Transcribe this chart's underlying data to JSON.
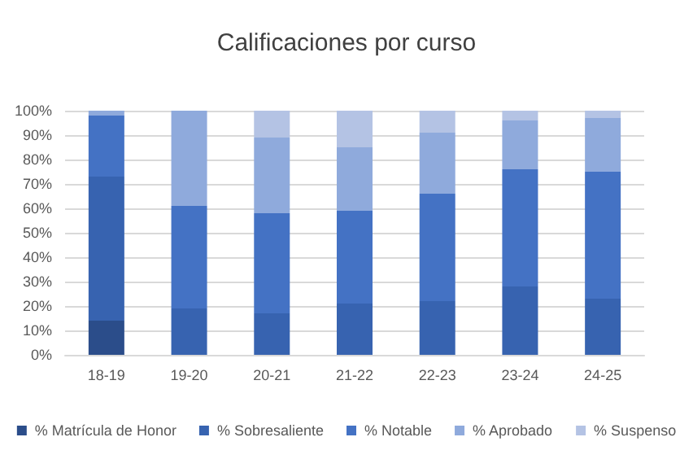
{
  "chart_data": {
    "type": "bar",
    "title": "Calificaciones por curso",
    "stacked": true,
    "categories": [
      "18-19",
      "19-20",
      "20-21",
      "21-22",
      "22-23",
      "23-24",
      "24-25"
    ],
    "series": [
      {
        "name": "% Matrícula de Honor",
        "color": "#2b4d8a",
        "values": [
          14,
          0,
          0,
          0,
          0,
          0,
          0
        ]
      },
      {
        "name": "% Sobresaliente",
        "color": "#3763b0",
        "values": [
          59,
          19,
          17,
          21,
          22,
          28,
          23
        ]
      },
      {
        "name": "% Notable",
        "color": "#4472c4",
        "values": [
          25,
          42,
          41,
          38,
          44,
          48,
          52
        ]
      },
      {
        "name": "% Aprobado",
        "color": "#8faadc",
        "values": [
          2,
          39,
          31,
          26,
          25,
          20,
          22
        ]
      },
      {
        "name": "% Suspenso",
        "color": "#b4c3e4",
        "values": [
          0,
          0,
          11,
          15,
          9,
          4,
          3
        ]
      }
    ],
    "ylim": [
      0,
      100
    ],
    "yticks": [
      {
        "value": 0,
        "label": "0%"
      },
      {
        "value": 10,
        "label": "10%"
      },
      {
        "value": 20,
        "label": "20%"
      },
      {
        "value": 30,
        "label": "30%"
      },
      {
        "value": 40,
        "label": "40%"
      },
      {
        "value": 50,
        "label": "50%"
      },
      {
        "value": 60,
        "label": "60%"
      },
      {
        "value": 70,
        "label": "70%"
      },
      {
        "value": 80,
        "label": "80%"
      },
      {
        "value": 90,
        "label": "90%"
      },
      {
        "value": 100,
        "label": "100%"
      }
    ],
    "grid": "y",
    "legend": "bottom"
  }
}
